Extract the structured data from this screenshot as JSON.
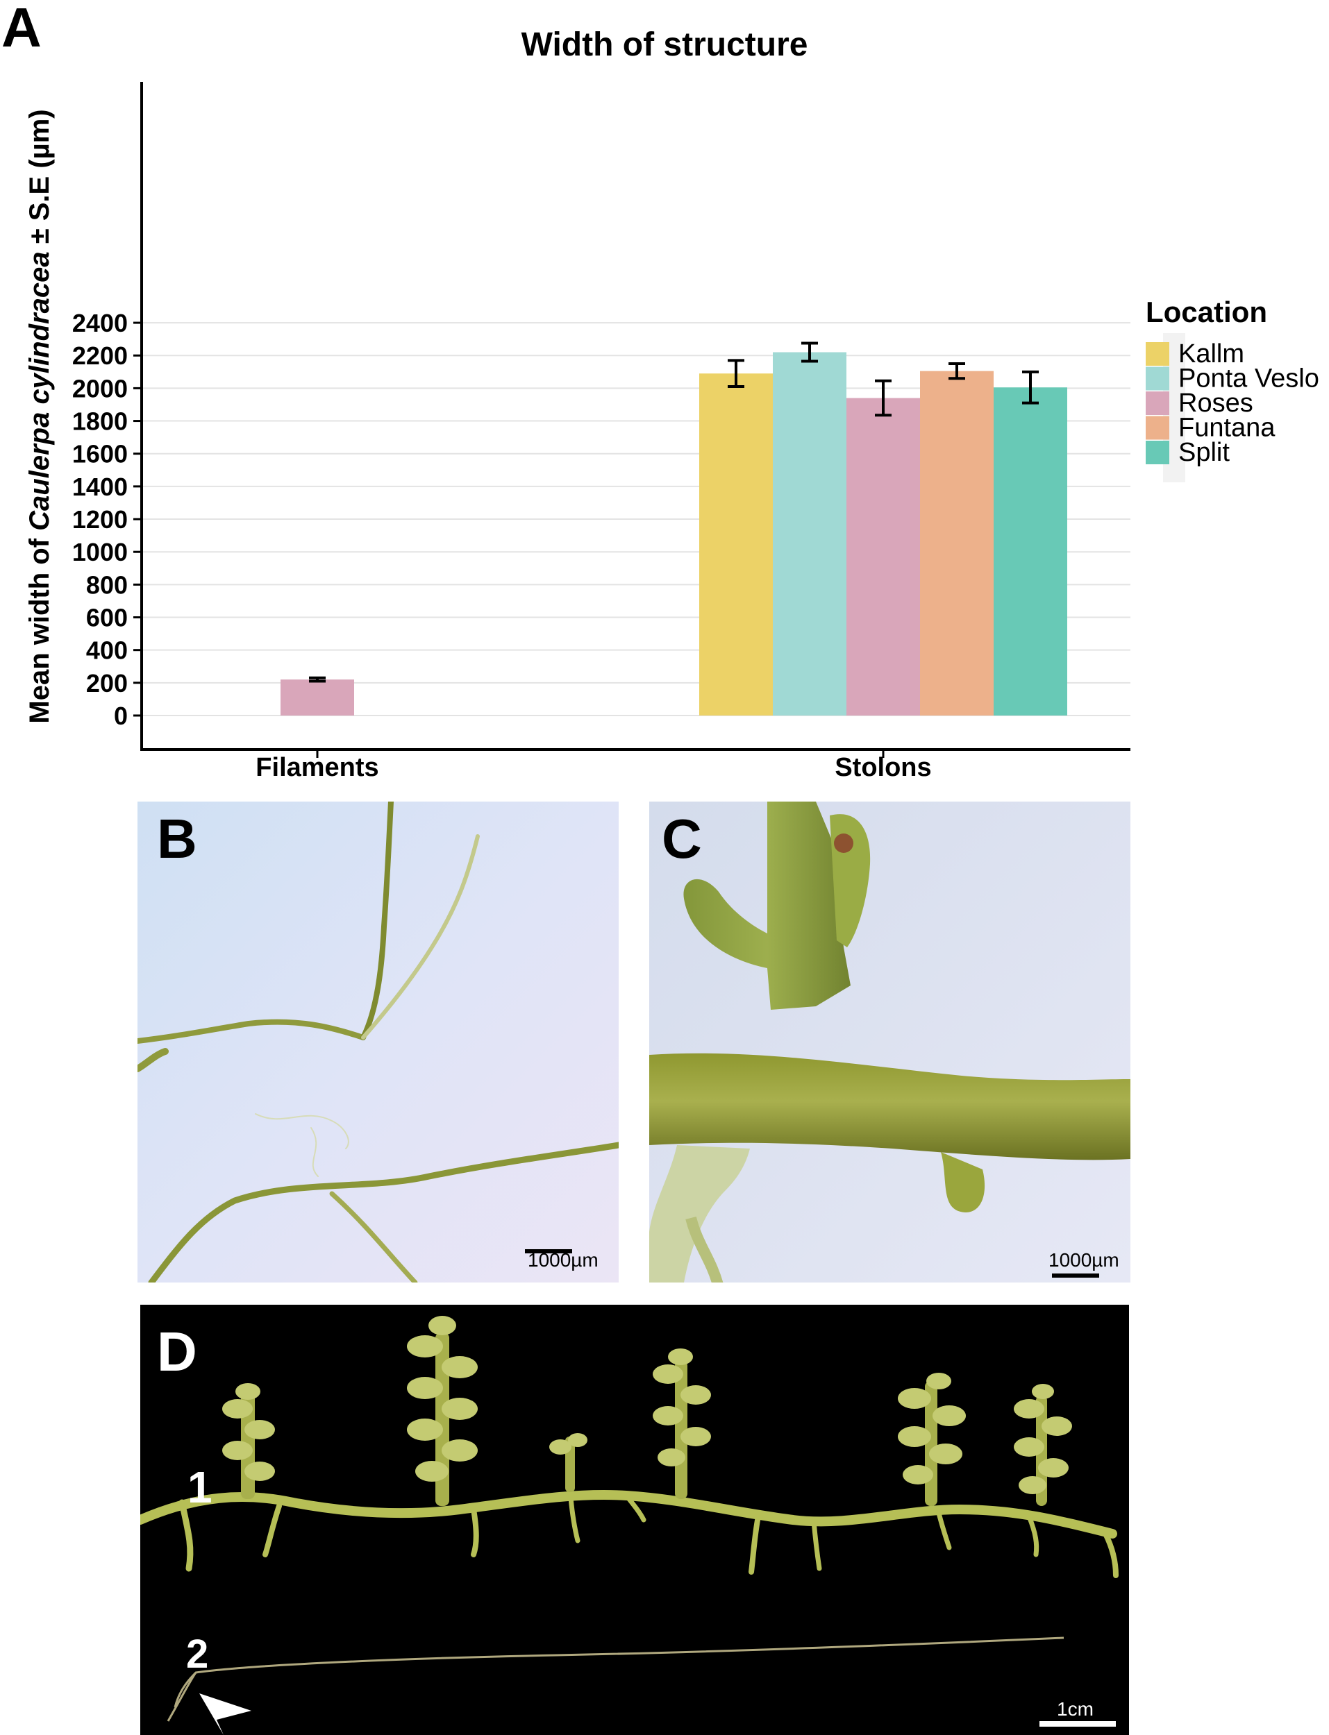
{
  "panels": {
    "a": "A",
    "b": "B",
    "c": "C",
    "d": "D"
  },
  "chart_data": {
    "type": "bar",
    "title": "Width of structure",
    "ylabel_prefix": "Mean width of ",
    "ylabel_species": "Caulerpa cylindracea",
    "ylabel_suffix": " ± S.E (µm)",
    "xlabel": "",
    "categories": [
      "Filaments",
      "Stolons"
    ],
    "ylim": [
      -250,
      2450
    ],
    "yticks": [
      0,
      200,
      400,
      600,
      800,
      1000,
      1200,
      1400,
      1600,
      1800,
      2000,
      2200,
      2400
    ],
    "grid": true,
    "legend_title": "Location",
    "legend_position": "right",
    "series": [
      {
        "name": "Kallm",
        "color": "#ECD267",
        "values": [
          null,
          2090
        ],
        "se": [
          null,
          80
        ]
      },
      {
        "name": "Ponta Veslo",
        "color": "#A0D9D4",
        "values": [
          null,
          2220
        ],
        "se": [
          null,
          55
        ]
      },
      {
        "name": "Roses",
        "color": "#D9A6BA",
        "values": [
          220,
          1940
        ],
        "se": [
          10,
          105
        ]
      },
      {
        "name": "Funtana",
        "color": "#EDB18B",
        "values": [
          null,
          2105
        ],
        "se": [
          null,
          45
        ]
      },
      {
        "name": "Split",
        "color": "#68C9B6",
        "values": [
          null,
          2005
        ],
        "se": [
          null,
          95
        ]
      }
    ]
  },
  "photos": {
    "b_scale": "1000µm",
    "c_scale": "1000µm",
    "d_scale": "1cm",
    "d_label1": "1",
    "d_label2": "2"
  }
}
